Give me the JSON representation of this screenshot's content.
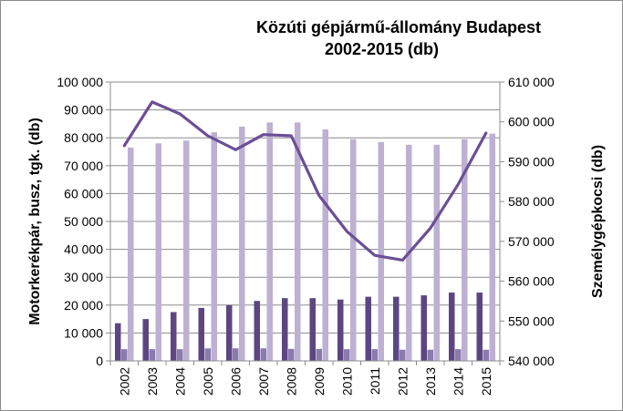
{
  "chart_data": {
    "type": "bar",
    "title_line1": "Közúti gépjármű-állomány Budapest",
    "title_line2": "2002-2015 (db)",
    "ylabel_left": "Motorkerékpár, busz, tgk. (db)",
    "ylabel_right": "Személygépkocsi   (db)",
    "categories": [
      "2002",
      "2003",
      "2004",
      "2005",
      "2006",
      "2007",
      "2008",
      "2009",
      "2010",
      "2011",
      "2012",
      "2013",
      "2014",
      "2015"
    ],
    "ylim_left": [
      0,
      100000
    ],
    "ylim_right": [
      540000,
      610000
    ],
    "yticks_left": [
      "0",
      "10 000",
      "20 000",
      "30 000",
      "40 000",
      "50 000",
      "60 000",
      "70 000",
      "80 000",
      "90 000",
      "100 000"
    ],
    "yticks_right": [
      "540 000",
      "550 000",
      "560 000",
      "570 000",
      "580 000",
      "590 000",
      "600 000",
      "610 000"
    ],
    "grid": true,
    "series": [
      {
        "axis": "left",
        "kind": "bar",
        "color": "#5c4682",
        "values": [
          13500,
          15000,
          17500,
          19000,
          20000,
          21500,
          22500,
          22500,
          22000,
          23000,
          23000,
          23500,
          24500,
          24500
        ]
      },
      {
        "axis": "left",
        "kind": "bar",
        "color": "#8a7aad",
        "values": [
          4200,
          4200,
          4200,
          4500,
          4500,
          4500,
          4300,
          4300,
          4200,
          4200,
          4000,
          4000,
          4200,
          4000
        ]
      },
      {
        "axis": "left",
        "kind": "bar",
        "color": "#bdb0d2",
        "values": [
          76500,
          78000,
          79000,
          82000,
          84000,
          85500,
          85500,
          83000,
          79500,
          78500,
          77500,
          77500,
          79500,
          81500
        ]
      },
      {
        "axis": "right",
        "kind": "line",
        "color": "#6b4f96",
        "values": [
          594000,
          605000,
          602000,
          596500,
          593000,
          596800,
          596500,
          581500,
          572500,
          566500,
          565300,
          573300,
          584300,
          597200
        ]
      }
    ]
  }
}
